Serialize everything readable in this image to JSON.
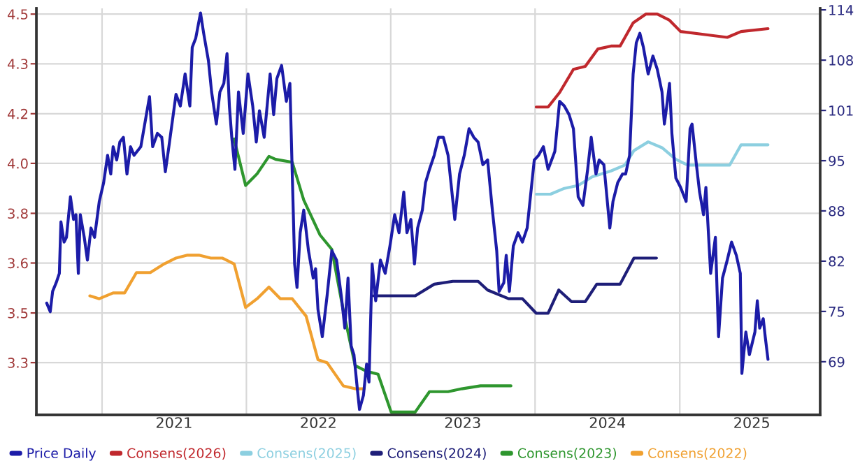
{
  "chart_data": {
    "type": "line",
    "xlim": [
      "2020-07-19",
      "2025-12-22"
    ],
    "xticks": [
      {
        "value": "2021-01-01",
        "label": null
      },
      {
        "value": "2022-01-01",
        "label": null
      },
      {
        "value": "2023-01-01",
        "label": null
      },
      {
        "value": "2024-01-01",
        "label": null
      },
      {
        "value": "2025-01-01",
        "label": null
      },
      {
        "value": "2021-07-02",
        "label": "2021"
      },
      {
        "value": "2022-07-02",
        "label": "2022"
      },
      {
        "value": "2023-07-02",
        "label": "2023"
      },
      {
        "value": "2024-07-02",
        "label": "2024"
      },
      {
        "value": "2025-07-02",
        "label": "2025"
      }
    ],
    "ylim": [
      3.12,
      4.52
    ],
    "yticks": [
      {
        "value": 3.3,
        "label": "3.3"
      },
      {
        "value": 3.471,
        "label": "3.5"
      },
      {
        "value": 3.643,
        "label": "3.6"
      },
      {
        "value": 3.814,
        "label": "3.8"
      },
      {
        "value": 3.986,
        "label": "4.0"
      },
      {
        "value": 4.157,
        "label": "4.2"
      },
      {
        "value": 4.329,
        "label": "4.3"
      },
      {
        "value": 4.5,
        "label": "4.5"
      }
    ],
    "y2lim": [
      62.2,
      114.2
    ],
    "y2ticks": [
      {
        "value": 69,
        "label": "69"
      },
      {
        "value": 75.43,
        "label": "75"
      },
      {
        "value": 81.86,
        "label": "82"
      },
      {
        "value": 88.29,
        "label": "88"
      },
      {
        "value": 94.71,
        "label": "95"
      },
      {
        "value": 101.14,
        "label": "101"
      },
      {
        "value": 107.57,
        "label": "108"
      },
      {
        "value": 114,
        "label": "114"
      }
    ],
    "grid": true,
    "legend": "bottom",
    "line_style": "solid",
    "marker": "none",
    "series": [
      {
        "name": "Price Daily",
        "color": "#1c1ca8",
        "axis": "y2",
        "x": [
          "2020-08-14",
          "2020-08-23",
          "2020-08-29",
          "2020-09-07",
          "2020-09-15",
          "2020-09-19",
          "2020-09-27",
          "2020-10-03",
          "2020-10-13",
          "2020-10-21",
          "2020-10-27",
          "2020-11-02",
          "2020-11-07",
          "2020-11-17",
          "2020-11-25",
          "2020-12-04",
          "2020-12-13",
          "2020-12-25",
          "2021-01-05",
          "2021-01-15",
          "2021-01-23",
          "2021-01-29",
          "2021-02-07",
          "2021-02-15",
          "2021-02-24",
          "2021-03-05",
          "2021-03-14",
          "2021-03-23",
          "2021-04-09",
          "2021-04-21",
          "2021-05-01",
          "2021-05-09",
          "2021-05-21",
          "2021-06-01",
          "2021-06-10",
          "2021-06-19",
          "2021-07-07",
          "2021-07-18",
          "2021-07-30",
          "2021-08-11",
          "2021-08-17",
          "2021-08-26",
          "2021-09-07",
          "2021-09-15",
          "2021-09-27",
          "2021-10-05",
          "2021-10-17",
          "2021-10-26",
          "2021-11-05",
          "2021-11-13",
          "2021-11-19",
          "2021-11-25",
          "2021-12-03",
          "2021-12-12",
          "2021-12-24",
          "2022-01-05",
          "2022-01-17",
          "2022-01-26",
          "2022-02-03",
          "2022-02-15",
          "2022-03-02",
          "2022-03-11",
          "2022-03-19",
          "2022-03-31",
          "2022-04-12",
          "2022-04-21",
          "2022-05-03",
          "2022-05-09",
          "2022-05-17",
          "2022-05-26",
          "2022-06-07",
          "2022-06-19",
          "2022-06-25",
          "2022-07-01",
          "2022-07-12",
          "2022-07-24",
          "2022-08-05",
          "2022-08-17",
          "2022-08-29",
          "2022-09-07",
          "2022-09-15",
          "2022-09-23",
          "2022-09-30",
          "2022-10-08",
          "2022-10-14",
          "2022-10-24",
          "2022-11-01",
          "2022-11-07",
          "2022-11-15",
          "2022-11-24",
          "2022-12-06",
          "2022-12-18",
          "2022-12-30",
          "2023-01-11",
          "2023-01-22",
          "2023-02-03",
          "2023-02-11",
          "2023-02-21",
          "2023-03-02",
          "2023-03-10",
          "2023-03-22",
          "2023-03-30",
          "2023-04-09",
          "2023-04-21",
          "2023-05-02",
          "2023-05-14",
          "2023-05-26",
          "2023-06-12",
          "2023-06-24",
          "2023-07-06",
          "2023-07-18",
          "2023-07-30",
          "2023-08-10",
          "2023-08-22",
          "2023-09-03",
          "2023-09-15",
          "2023-09-26",
          "2023-10-02",
          "2023-10-14",
          "2023-10-20",
          "2023-10-28",
          "2023-11-07",
          "2023-11-19",
          "2023-11-30",
          "2023-12-12",
          "2023-12-24",
          "2023-12-30",
          "2024-01-10",
          "2024-01-22",
          "2024-02-03",
          "2024-02-20",
          "2024-03-03",
          "2024-03-15",
          "2024-03-27",
          "2024-04-07",
          "2024-04-19",
          "2024-05-01",
          "2024-05-13",
          "2024-05-22",
          "2024-06-03",
          "2024-06-11",
          "2024-06-23",
          "2024-07-08",
          "2024-07-16",
          "2024-07-28",
          "2024-08-09",
          "2024-08-17",
          "2024-08-27",
          "2024-09-05",
          "2024-09-13",
          "2024-09-22",
          "2024-10-01",
          "2024-10-13",
          "2024-10-25",
          "2024-11-05",
          "2024-11-17",
          "2024-11-23",
          "2024-11-29",
          "2024-12-06",
          "2024-12-12",
          "2024-12-22",
          "2025-01-03",
          "2025-01-17",
          "2025-01-27",
          "2025-02-01",
          "2025-02-12",
          "2025-02-20",
          "2025-03-02",
          "2025-03-08",
          "2025-03-20",
          "2025-04-01",
          "2025-04-09",
          "2025-04-19",
          "2025-05-01",
          "2025-05-12",
          "2025-05-24",
          "2025-06-03",
          "2025-06-07",
          "2025-06-17",
          "2025-06-26",
          "2025-07-10",
          "2025-07-16",
          "2025-07-22",
          "2025-07-31",
          "2025-08-05",
          "2025-08-12"
        ],
        "values": [
          76.5,
          75.4,
          78.0,
          79.1,
          80.3,
          86.9,
          84.3,
          84.9,
          90.1,
          87.2,
          87.8,
          80.3,
          87.8,
          84.9,
          82.0,
          86.1,
          84.9,
          89.5,
          91.9,
          95.4,
          93.0,
          96.5,
          94.8,
          97.1,
          97.7,
          93.0,
          96.5,
          95.4,
          96.5,
          100.0,
          102.9,
          96.5,
          98.2,
          97.7,
          93.3,
          96.5,
          103.2,
          101.7,
          105.8,
          101.7,
          109.2,
          110.4,
          113.6,
          111.0,
          107.5,
          103.5,
          99.4,
          103.5,
          104.6,
          108.4,
          101.7,
          97.7,
          93.6,
          103.5,
          98.2,
          105.8,
          101.7,
          97.1,
          101.1,
          97.7,
          105.8,
          100.6,
          105.2,
          106.9,
          102.3,
          104.6,
          81.5,
          78.5,
          85.5,
          88.4,
          83.2,
          79.7,
          80.9,
          75.7,
          72.2,
          77.4,
          83.2,
          82.0,
          77.4,
          73.3,
          79.7,
          71.0,
          69.9,
          65.8,
          62.9,
          64.7,
          68.7,
          66.4,
          81.5,
          76.8,
          82.0,
          80.3,
          83.8,
          87.8,
          85.5,
          90.7,
          85.5,
          87.2,
          81.5,
          86.1,
          88.4,
          91.9,
          93.6,
          95.4,
          97.7,
          97.7,
          95.4,
          87.2,
          93.0,
          95.4,
          98.8,
          97.7,
          97.1,
          94.2,
          94.8,
          88.4,
          83.2,
          78.0,
          79.1,
          82.6,
          78.0,
          83.8,
          85.5,
          84.3,
          86.1,
          91.9,
          94.8,
          95.4,
          96.5,
          93.6,
          95.9,
          102.3,
          101.7,
          100.6,
          98.8,
          90.1,
          89.0,
          93.6,
          97.7,
          93.0,
          94.8,
          94.2,
          86.1,
          89.5,
          91.9,
          93.0,
          93.0,
          95.4,
          105.8,
          109.8,
          111.0,
          109.2,
          105.8,
          108.1,
          106.4,
          103.5,
          99.4,
          101.7,
          104.6,
          98.2,
          92.5,
          91.3,
          89.5,
          98.8,
          99.4,
          94.2,
          90.7,
          87.8,
          91.3,
          80.3,
          84.9,
          72.2,
          79.7,
          82.0,
          84.3,
          82.6,
          80.3,
          67.5,
          72.8,
          69.9,
          72.8,
          76.8,
          73.3,
          74.5,
          72.2,
          69.3
        ]
      },
      {
        "name": "Consens(2026)",
        "color": "#c0282d",
        "x": [
          "2024-01-04",
          "2024-02-03",
          "2024-03-03",
          "2024-04-07",
          "2024-05-07",
          "2024-06-08",
          "2024-07-11",
          "2024-08-03",
          "2024-09-05",
          "2024-10-07",
          "2024-11-05",
          "2024-12-05",
          "2025-01-03",
          "2025-03-02",
          "2025-05-01",
          "2025-06-05",
          "2025-08-12"
        ],
        "values": [
          4.18,
          4.18,
          4.23,
          4.31,
          4.32,
          4.38,
          4.39,
          4.39,
          4.47,
          4.5,
          4.5,
          4.48,
          4.44,
          4.43,
          4.42,
          4.44,
          4.45
        ]
      },
      {
        "name": "Consens(2025)",
        "color": "#8ccfe0",
        "x": [
          "2024-01-04",
          "2024-02-09",
          "2024-03-15",
          "2024-04-19",
          "2024-05-25",
          "2024-07-11",
          "2024-08-15",
          "2024-09-07",
          "2024-10-13",
          "2024-11-17",
          "2024-12-22",
          "2025-01-21",
          "2025-03-02",
          "2025-05-07",
          "2025-06-05",
          "2025-08-12"
        ],
        "values": [
          3.88,
          3.88,
          3.9,
          3.91,
          3.94,
          3.96,
          3.98,
          4.03,
          4.06,
          4.04,
          4.0,
          3.98,
          3.98,
          3.98,
          4.05,
          4.05
        ]
      },
      {
        "name": "Consens(2024)",
        "color": "#1e1e78",
        "x": [
          "2022-11-19",
          "2022-12-30",
          "2023-03-04",
          "2023-04-21",
          "2023-06-07",
          "2023-07-24",
          "2023-08-10",
          "2023-09-03",
          "2023-10-26",
          "2023-11-30",
          "2024-01-04",
          "2024-02-03",
          "2024-03-01",
          "2024-04-02",
          "2024-05-07",
          "2024-06-05",
          "2024-08-03",
          "2024-09-07",
          "2024-11-03"
        ],
        "values": [
          3.53,
          3.53,
          3.53,
          3.57,
          3.58,
          3.58,
          3.58,
          3.55,
          3.52,
          3.52,
          3.47,
          3.47,
          3.55,
          3.51,
          3.51,
          3.57,
          3.57,
          3.66,
          3.66
        ]
      },
      {
        "name": "Consens(2023)",
        "color": "#2e962e",
        "x": [
          "2021-12-01",
          "2021-12-30",
          "2022-01-28",
          "2022-02-27",
          "2022-03-16",
          "2022-04-27",
          "2022-05-26",
          "2022-07-06",
          "2022-08-05",
          "2022-09-03",
          "2022-10-03",
          "2022-11-01",
          "2022-11-30",
          "2023-01-02",
          "2023-01-28",
          "2023-03-04",
          "2023-04-09",
          "2023-04-21",
          "2023-05-26",
          "2023-06-30",
          "2023-08-16",
          "2023-11-01"
        ],
        "values": [
          4.07,
          3.91,
          3.95,
          4.01,
          4.0,
          3.99,
          3.86,
          3.74,
          3.69,
          3.48,
          3.29,
          3.27,
          3.26,
          3.13,
          3.13,
          3.13,
          3.2,
          3.2,
          3.2,
          3.21,
          3.22,
          3.22
        ]
      },
      {
        "name": "Consens(2022)",
        "color": "#f0a030",
        "x": [
          "2020-12-01",
          "2020-12-25",
          "2021-01-29",
          "2021-02-27",
          "2021-03-29",
          "2021-05-03",
          "2021-06-07",
          "2021-07-07",
          "2021-08-05",
          "2021-09-03",
          "2021-10-03",
          "2021-11-01",
          "2021-12-01",
          "2021-12-30",
          "2022-01-28",
          "2022-02-27",
          "2022-03-28",
          "2022-04-27",
          "2022-06-01",
          "2022-07-01",
          "2022-07-24",
          "2022-09-03",
          "2022-10-03",
          "2022-10-26"
        ],
        "values": [
          3.53,
          3.52,
          3.54,
          3.54,
          3.61,
          3.61,
          3.64,
          3.66,
          3.67,
          3.67,
          3.66,
          3.66,
          3.64,
          3.49,
          3.52,
          3.56,
          3.52,
          3.52,
          3.46,
          3.31,
          3.3,
          3.22,
          3.21,
          3.21
        ]
      }
    ]
  }
}
